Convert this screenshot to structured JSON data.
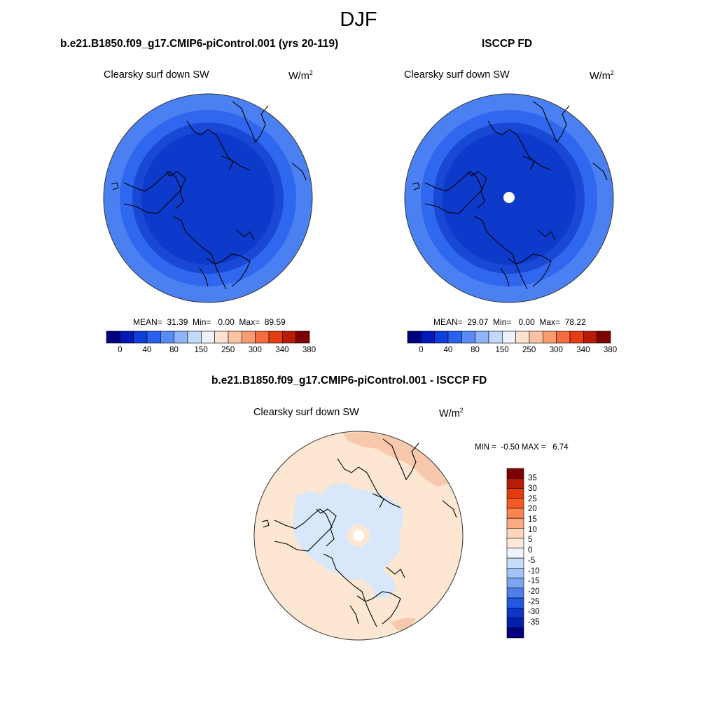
{
  "figure": {
    "season": "DJF"
  },
  "panels": [
    {
      "title": "b.e21.B1850.f09_g17.CMIP6-piControl.001 (yrs 20-119)",
      "variable": "Clearsky surf down SW",
      "units_base": "W/m",
      "units_exp": "2",
      "stats": "MEAN=  31.39  Min=   0.00  Max=  89.59",
      "colorbar_labels": [
        "0",
        "40",
        "80",
        "150",
        "250",
        "300",
        "340",
        "380"
      ]
    },
    {
      "title": "ISCCP FD",
      "variable": "Clearsky surf down SW",
      "units_base": "W/m",
      "units_exp": "2",
      "stats": "MEAN=  29.07  Min=   0.00  Max=  78.22",
      "colorbar_labels": [
        "0",
        "40",
        "80",
        "150",
        "250",
        "300",
        "340",
        "380"
      ]
    },
    {
      "title": "b.e21.B1850.f09_g17.CMIP6-piControl.001 - ISCCP FD",
      "variable": "Clearsky surf down SW",
      "units_base": "W/m",
      "units_exp": "2",
      "stats": "MIN =  -0.50 MAX =   6.74",
      "colorbar_labels": [
        "35",
        "30",
        "25",
        "20",
        "15",
        "10",
        "5",
        "0",
        "-5",
        "-10",
        "-15",
        "-20",
        "-25",
        "-30",
        "-35"
      ]
    }
  ],
  "colorbars": {
    "field_colors": [
      "#00007f",
      "#0019b8",
      "#0d3fdb",
      "#2a60ef",
      "#5a8af7",
      "#90b4fb",
      "#c2d9fc",
      "#ecf2fb",
      "#fde3cf",
      "#fcc3a2",
      "#fb9b6f",
      "#f76b3f",
      "#e73d13",
      "#b91c06",
      "#7f0000"
    ],
    "diff_colors": [
      "#7f0000",
      "#b91c06",
      "#e43a0f",
      "#f55a22",
      "#fa8450",
      "#fbab84",
      "#fdd6bd",
      "#fdeadc",
      "#eef3fb",
      "#c9dcf8",
      "#a3c2f5",
      "#7ca5f0",
      "#4e7ee9",
      "#2458e0",
      "#0c36c8",
      "#041fab",
      "#00007f"
    ]
  },
  "map_colors": {
    "ring_outer": "#4a80f2",
    "ring_mid": "#2f68ee",
    "ring_inner": "#1848d4",
    "core": "#0d3acb",
    "missing": "#ffffff",
    "diff_background": "#fde6d2",
    "diff_negative": "#d8e7f9",
    "diff_positive": "#f8c8ad"
  }
}
